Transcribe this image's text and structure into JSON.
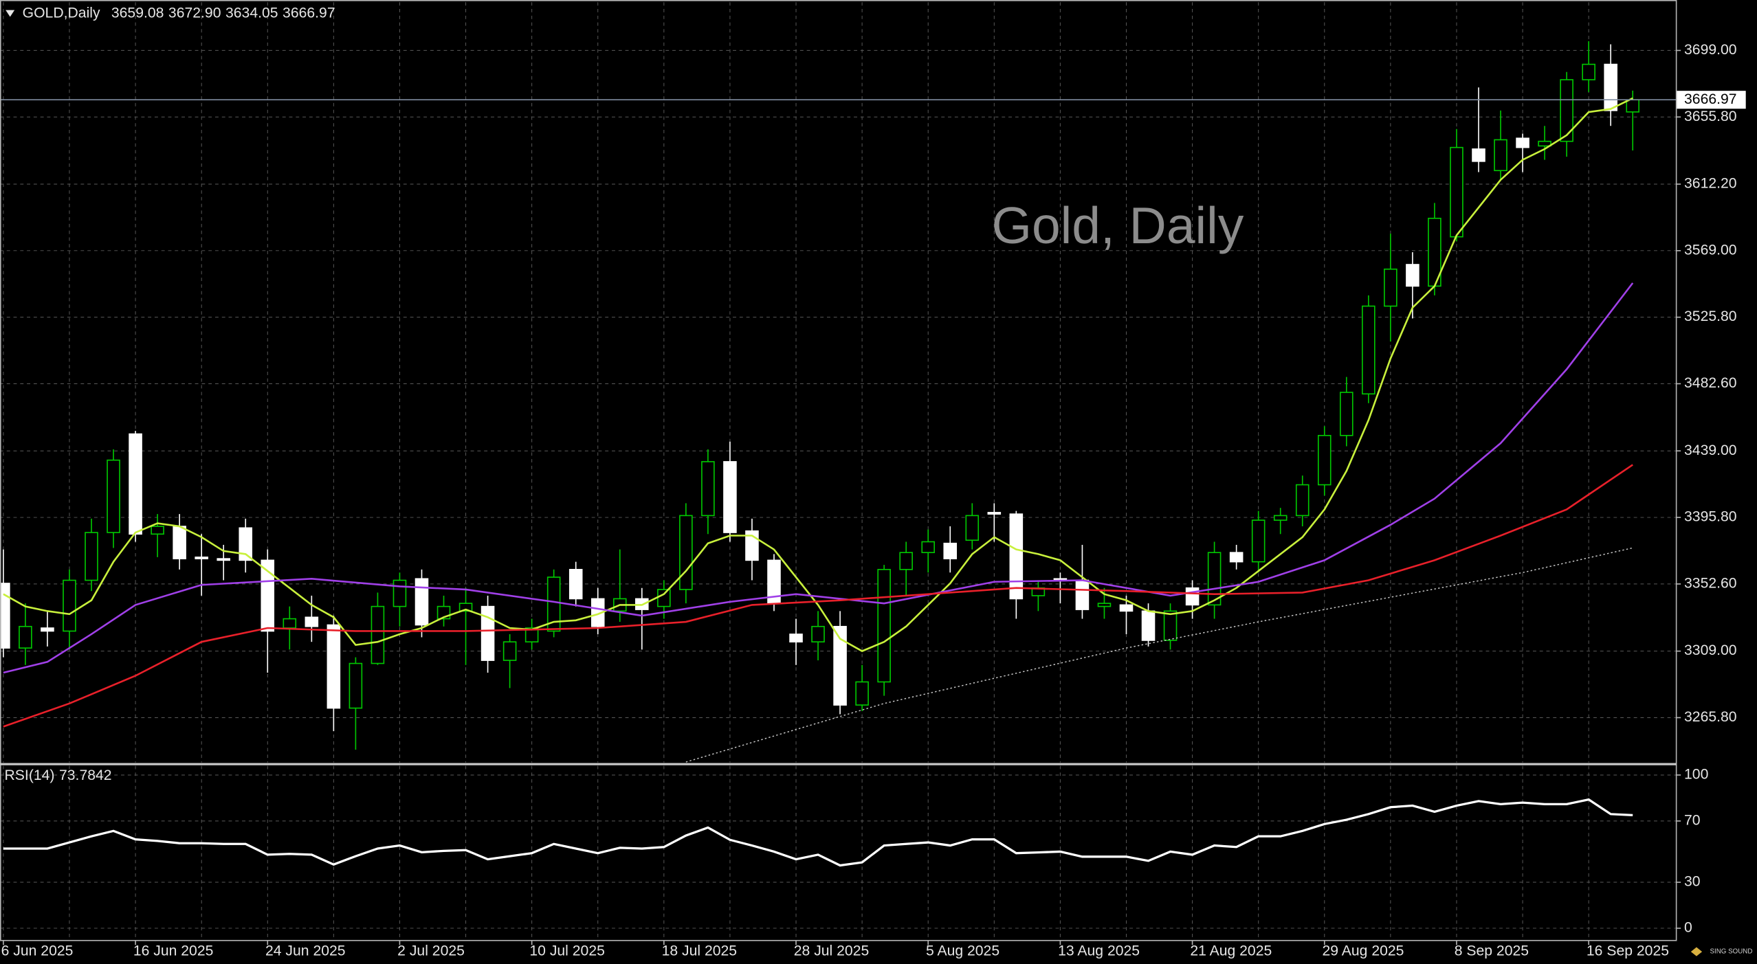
{
  "chart_data": [
    {
      "type": "candlestick",
      "title": "Gold, Daily",
      "header": "GOLD,Daily",
      "header_values": [
        "3659.08",
        "3672.90",
        "3634.05",
        "3666.97"
      ],
      "logo": "SING SOUND",
      "categories": [
        "6 Jun 2025",
        null,
        null,
        null,
        null,
        null,
        "16 Jun 2025",
        null,
        null,
        null,
        null,
        null,
        "24 Jun 2025",
        null,
        null,
        null,
        null,
        null,
        "2 Jul 2025",
        null,
        null,
        null,
        null,
        null,
        "10 Jul 2025",
        null,
        null,
        null,
        null,
        null,
        "18 Jul 2025",
        null,
        null,
        null,
        null,
        null,
        "28 Jul 2025",
        null,
        null,
        null,
        null,
        null,
        "5 Aug 2025",
        null,
        null,
        null,
        null,
        null,
        "13 Aug 2025",
        null,
        null,
        null,
        null,
        null,
        "21 Aug 2025",
        null,
        null,
        null,
        null,
        null,
        "29 Aug 2025",
        null,
        null,
        null,
        null,
        null,
        "8 Sep 2025",
        null,
        null,
        null,
        null,
        null,
        "16 Sep 2025",
        null,
        null
      ],
      "open": [
        3353,
        3311,
        3324,
        3322,
        3355,
        3386,
        3450,
        3385,
        3390,
        3370,
        3369,
        3389,
        3368,
        3324,
        3331,
        3326,
        3272,
        3301,
        3338,
        3356,
        3330,
        3335,
        3338,
        3303,
        3315,
        3322,
        3362,
        3343,
        3335,
        3343,
        3338,
        3349,
        3397,
        3432,
        3387,
        3368,
        3320,
        3315,
        3325,
        3274,
        3289,
        3362,
        3373,
        3379,
        3381,
        3399,
        3398,
        3345,
        3356,
        3355,
        3338,
        3339,
        3335,
        3316,
        3350,
        3339,
        3373,
        3367,
        3394,
        3397,
        3417,
        3449,
        3476,
        3533,
        3560,
        3546,
        3578,
        3635,
        3621,
        3642,
        3637,
        3640,
        3680,
        3690,
        3659.08
      ],
      "high": [
        3375,
        3340,
        3335,
        3362,
        3395,
        3440,
        3452,
        3398,
        3398,
        3385,
        3378,
        3395,
        3375,
        3338,
        3345,
        3332,
        3305,
        3347,
        3360,
        3362,
        3345,
        3350,
        3345,
        3320,
        3330,
        3362,
        3367,
        3350,
        3375,
        3350,
        3355,
        3405,
        3440,
        3445,
        3395,
        3372,
        3330,
        3335,
        3335,
        3300,
        3365,
        3380,
        3388,
        3390,
        3405,
        3405,
        3400,
        3355,
        3360,
        3378,
        3350,
        3345,
        3340,
        3340,
        3355,
        3380,
        3378,
        3400,
        3402,
        3423,
        3455,
        3487,
        3540,
        3580,
        3568,
        3600,
        3648,
        3675,
        3660,
        3645,
        3650,
        3685,
        3705,
        3703,
        3672.9
      ],
      "low": [
        3305,
        3300,
        3312,
        3310,
        3348,
        3376,
        3380,
        3370,
        3362,
        3345,
        3355,
        3360,
        3295,
        3310,
        3315,
        3257,
        3245,
        3300,
        3325,
        3318,
        3325,
        3300,
        3295,
        3285,
        3310,
        3318,
        3338,
        3320,
        3328,
        3310,
        3330,
        3340,
        3385,
        3380,
        3355,
        3335,
        3300,
        3303,
        3268,
        3270,
        3280,
        3345,
        3360,
        3360,
        3375,
        3380,
        3330,
        3335,
        3340,
        3330,
        3330,
        3320,
        3312,
        3310,
        3330,
        3330,
        3362,
        3360,
        3385,
        3390,
        3410,
        3442,
        3470,
        3510,
        3525,
        3540,
        3575,
        3620,
        3615,
        3620,
        3628,
        3630,
        3672,
        3650,
        3634.05
      ],
      "close": [
        3311,
        3325,
        3322,
        3355,
        3386,
        3433,
        3385,
        3390,
        3369,
        3369,
        3368,
        3368,
        3322,
        3330,
        3325,
        3272,
        3301,
        3338,
        3355,
        3326,
        3338,
        3340,
        3303,
        3315,
        3324,
        3357,
        3343,
        3325,
        3343,
        3336,
        3349,
        3397,
        3432,
        3386,
        3368,
        3340,
        3315,
        3325,
        3274,
        3289,
        3362,
        3373,
        3380,
        3369,
        3397,
        3398,
        3343,
        3350,
        3355,
        3336,
        3340,
        3335,
        3316,
        3335,
        3339,
        3373,
        3367,
        3394,
        3397,
        3417,
        3449,
        3477,
        3533,
        3557,
        3546,
        3590,
        3636,
        3627,
        3641,
        3636,
        3640,
        3680,
        3690,
        3660,
        3666.97
      ],
      "bull_color": "#00c800",
      "bear_color": "#ffffff",
      "overlays": [
        {
          "color": "#c8f03c",
          "style": "solid",
          "x": [
            0,
            1,
            2,
            3,
            4,
            5,
            6,
            7,
            8,
            9,
            10,
            11,
            12,
            13,
            14,
            15,
            16,
            17,
            18,
            19,
            20,
            21,
            22,
            23,
            24,
            25,
            26,
            27,
            28,
            29,
            30,
            31,
            32,
            33,
            34,
            35,
            36,
            37,
            38,
            39,
            40,
            41,
            42,
            43,
            44,
            45,
            46,
            47,
            48,
            49,
            50,
            51,
            52,
            53,
            54,
            55,
            56,
            57,
            58,
            59,
            60,
            61,
            62,
            63,
            64,
            65,
            66,
            67,
            68,
            69,
            70,
            71,
            72,
            73,
            74
          ],
          "values": [
            3346,
            3338,
            3335,
            3333,
            3342,
            3367,
            3386,
            3392,
            3390,
            3383,
            3374,
            3372,
            3361,
            3350,
            3339,
            3331,
            3313,
            3315,
            3320,
            3324,
            3331,
            3336,
            3331,
            3324,
            3323,
            3328,
            3329,
            3333,
            3339,
            3339,
            3346,
            3361,
            3379,
            3384,
            3384,
            3375,
            3357,
            3339,
            3317,
            3309,
            3315,
            3325,
            3339,
            3353,
            3372,
            3383,
            3375,
            3372,
            3368,
            3357,
            3346,
            3342,
            3335,
            3333,
            3335,
            3342,
            3350,
            3361,
            3372,
            3383,
            3401,
            3426,
            3459,
            3499,
            3532,
            3546,
            3579,
            3597,
            3615,
            3628,
            3635,
            3644,
            3659,
            3661,
            3668
          ]
        },
        {
          "color": "#a040e8",
          "style": "solid",
          "x": [
            0,
            2,
            4,
            6,
            9,
            14,
            18,
            21,
            25,
            29,
            33,
            36,
            40,
            45,
            49,
            53,
            57,
            60,
            63,
            65,
            68,
            71,
            74
          ],
          "values": [
            3295,
            3302,
            3320,
            3339,
            3352,
            3356,
            3351,
            3349,
            3341,
            3332,
            3341,
            3346,
            3340,
            3354,
            3355,
            3345,
            3354,
            3368,
            3391,
            3408,
            3444,
            3492,
            3548
          ]
        },
        {
          "color": "#e8202a",
          "style": "solid",
          "x": [
            0,
            3,
            6,
            9,
            12,
            16,
            21,
            27,
            31,
            34,
            38,
            42,
            46,
            51,
            55,
            59,
            62,
            65,
            68,
            71,
            74
          ],
          "values": [
            3260,
            3275,
            3293,
            3315,
            3324,
            3322,
            3322,
            3324,
            3328,
            3339,
            3342,
            3346,
            3350,
            3348,
            3346,
            3347,
            3355,
            3368,
            3384,
            3401,
            3430
          ]
        },
        {
          "color": "#c8c8c8",
          "style": "dotted",
          "x": [
            31,
            40,
            51,
            57,
            63,
            69,
            74
          ],
          "values": [
            3237,
            3275,
            3311,
            3328,
            3344,
            3360,
            3376
          ]
        }
      ],
      "last_price_line": true,
      "price_line_color": "#7f8ca0",
      "ylim": [
        3236.7,
        3730.3
      ],
      "yticks": [
        {
          "value": 3265.8,
          "label": "3265.80"
        },
        {
          "value": 3309,
          "label": "3309.00"
        },
        {
          "value": 3352.6,
          "label": "3352.60"
        },
        {
          "value": 3395.8,
          "label": "3395.80"
        },
        {
          "value": 3439,
          "label": "3439.00"
        },
        {
          "value": 3482.6,
          "label": "3482.60"
        },
        {
          "value": 3525.8,
          "label": "3525.80"
        },
        {
          "value": 3569,
          "label": "3569.00"
        },
        {
          "value": 3612.2,
          "label": "3612.20"
        },
        {
          "value": 3655.8,
          "label": "3655.80"
        },
        {
          "value": 3699,
          "label": "3699.00"
        }
      ],
      "grid": true
    },
    {
      "type": "line",
      "name": "RSI(14)",
      "color": "#ffffff",
      "values": [
        52,
        52,
        52,
        56,
        60,
        63.5,
        58,
        57,
        55.5,
        55.5,
        55,
        55,
        48,
        48.5,
        48,
        41.6,
        47,
        52,
        54,
        49.6,
        50.5,
        51,
        45,
        47,
        49,
        55,
        52,
        49,
        52.5,
        52,
        53,
        60.5,
        65.7,
        57.7,
        54,
        50,
        45,
        48,
        41,
        43,
        54,
        55,
        56,
        54,
        58,
        58,
        49,
        49.5,
        50,
        46.7,
        46.7,
        46.7,
        44,
        50,
        48,
        54,
        53,
        60,
        60,
        63.5,
        68,
        70.8,
        74.5,
        79,
        80,
        76,
        80,
        83,
        81,
        82,
        81,
        81,
        84,
        74.5,
        73.7842
      ],
      "ylim": [
        -8,
        106
      ],
      "yticks": [
        0,
        30,
        70,
        100
      ],
      "grid": true
    }
  ]
}
